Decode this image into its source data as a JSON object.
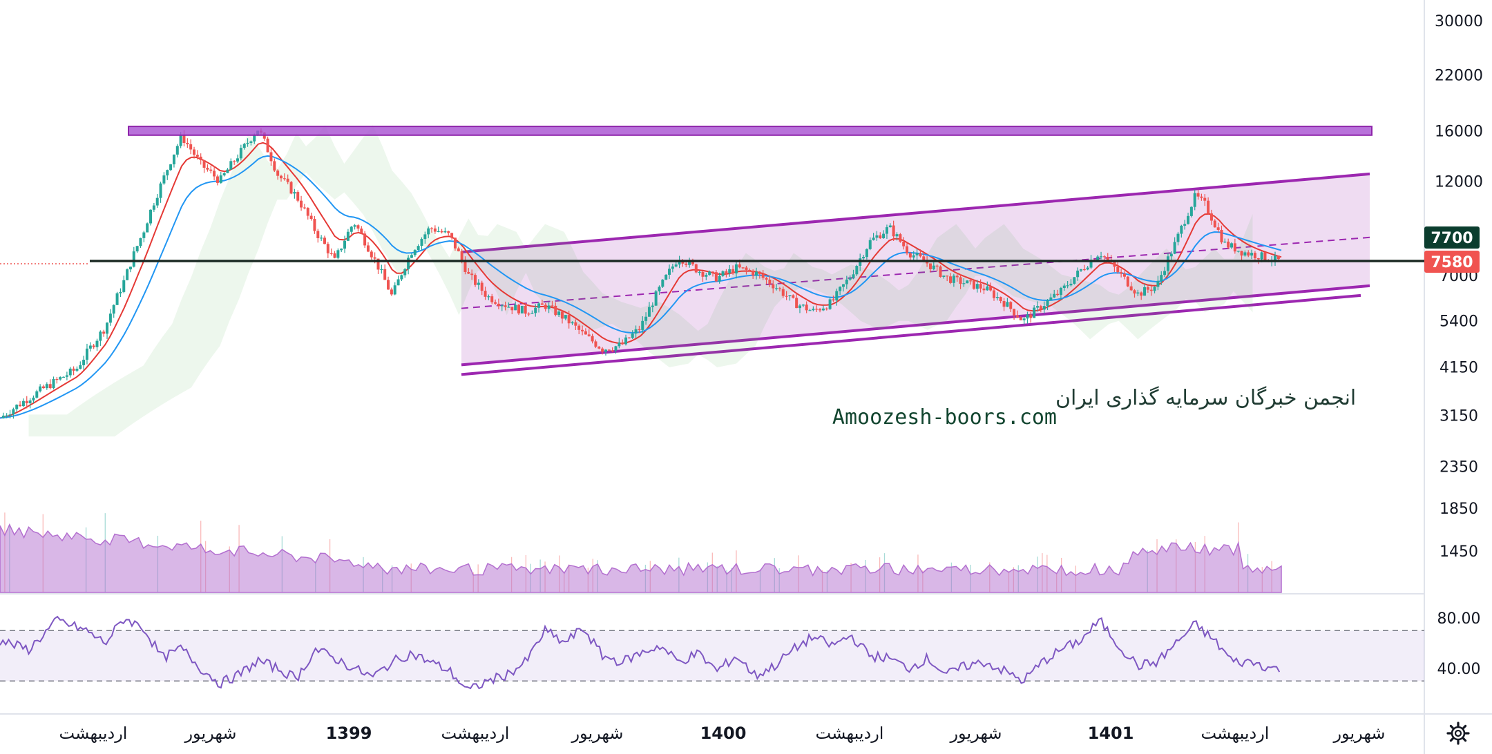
{
  "chart_data": {
    "type": "candlestick",
    "price_axis": {
      "scale": "log",
      "ticks": [
        "30000",
        "22000",
        "16000",
        "12000",
        "7000",
        "5400",
        "4150",
        "3150",
        "2350",
        "1850",
        "1450"
      ]
    },
    "rsi_axis": {
      "ticks": [
        "80.00",
        "40.00"
      ],
      "upper_level": 70,
      "lower_level": 30
    },
    "time_axis": {
      "labels": [
        {
          "text": "اردیبهشت",
          "bold": false
        },
        {
          "text": "شهریور",
          "bold": false
        },
        {
          "text": "1399",
          "bold": true
        },
        {
          "text": "اردیبهشت",
          "bold": false
        },
        {
          "text": "شهریور",
          "bold": false
        },
        {
          "text": "1400",
          "bold": true
        },
        {
          "text": "اردیبهشت",
          "bold": false
        },
        {
          "text": "شهریور",
          "bold": false
        },
        {
          "text": "1401",
          "bold": true
        },
        {
          "text": "اردیبهشت",
          "bold": false
        },
        {
          "text": "شهریور",
          "bold": false
        }
      ]
    },
    "price_tags": [
      {
        "value": "7700",
        "color": "#0b3d2e"
      },
      {
        "value": "7580",
        "color": "#f05350"
      }
    ],
    "resistance_zone": {
      "low": 15600,
      "high": 16400,
      "color": "#a64fd1"
    },
    "support_level": 7600,
    "channel": {
      "upper_start": 8000,
      "upper_end": 12500,
      "lower_start": 4200,
      "lower_end": 6600,
      "mid_start": 5800,
      "mid_end": 8700
    },
    "price_path": [
      [
        0,
        3100
      ],
      [
        4,
        3600
      ],
      [
        8,
        4100
      ],
      [
        11,
        5200
      ],
      [
        13,
        6800
      ],
      [
        15,
        9000
      ],
      [
        17,
        12000
      ],
      [
        19,
        15500
      ],
      [
        21,
        13200
      ],
      [
        23,
        12000
      ],
      [
        25,
        14000
      ],
      [
        27,
        16200
      ],
      [
        29,
        12500
      ],
      [
        31,
        11000
      ],
      [
        33,
        9000
      ],
      [
        35,
        7600
      ],
      [
        37,
        9500
      ],
      [
        39,
        7800
      ],
      [
        41,
        6200
      ],
      [
        43,
        8000
      ],
      [
        45,
        9200
      ],
      [
        47,
        8800
      ],
      [
        49,
        7000
      ],
      [
        51,
        6200
      ],
      [
        53,
        5900
      ],
      [
        55,
        5700
      ],
      [
        57,
        5900
      ],
      [
        59,
        5500
      ],
      [
        61,
        5000
      ],
      [
        63,
        4600
      ],
      [
        65,
        4700
      ],
      [
        67,
        5200
      ],
      [
        69,
        6500
      ],
      [
        71,
        7800
      ],
      [
        73,
        7200
      ],
      [
        75,
        6900
      ],
      [
        77,
        7300
      ],
      [
        79,
        7100
      ],
      [
        81,
        6600
      ],
      [
        83,
        6000
      ],
      [
        85,
        5700
      ],
      [
        87,
        6000
      ],
      [
        89,
        7000
      ],
      [
        91,
        8500
      ],
      [
        93,
        9200
      ],
      [
        95,
        8000
      ],
      [
        97,
        7500
      ],
      [
        99,
        6900
      ],
      [
        101,
        6700
      ],
      [
        103,
        6500
      ],
      [
        105,
        6000
      ],
      [
        107,
        5400
      ],
      [
        109,
        5900
      ],
      [
        111,
        6400
      ],
      [
        113,
        7200
      ],
      [
        115,
        8000
      ],
      [
        117,
        7100
      ],
      [
        119,
        6300
      ],
      [
        121,
        6600
      ],
      [
        123,
        8500
      ],
      [
        125,
        11000
      ],
      [
        126,
        10500
      ],
      [
        128,
        8400
      ],
      [
        130,
        8000
      ],
      [
        132,
        7800
      ],
      [
        134,
        7580
      ]
    ],
    "rsi_path": [
      [
        0,
        62
      ],
      [
        3,
        55
      ],
      [
        6,
        78
      ],
      [
        9,
        70
      ],
      [
        11,
        60
      ],
      [
        13,
        80
      ],
      [
        15,
        72
      ],
      [
        17,
        48
      ],
      [
        19,
        56
      ],
      [
        21,
        40
      ],
      [
        23,
        28
      ],
      [
        25,
        35
      ],
      [
        27,
        46
      ],
      [
        29,
        40
      ],
      [
        31,
        32
      ],
      [
        33,
        55
      ],
      [
        35,
        48
      ],
      [
        37,
        40
      ],
      [
        39,
        33
      ],
      [
        41,
        45
      ],
      [
        43,
        52
      ],
      [
        45,
        45
      ],
      [
        47,
        38
      ],
      [
        49,
        22
      ],
      [
        51,
        30
      ],
      [
        53,
        35
      ],
      [
        55,
        45
      ],
      [
        57,
        70
      ],
      [
        59,
        60
      ],
      [
        61,
        72
      ],
      [
        63,
        50
      ],
      [
        65,
        45
      ],
      [
        67,
        52
      ],
      [
        69,
        58
      ],
      [
        71,
        45
      ],
      [
        73,
        52
      ],
      [
        75,
        38
      ],
      [
        77,
        50
      ],
      [
        79,
        34
      ],
      [
        81,
        42
      ],
      [
        83,
        55
      ],
      [
        85,
        65
      ],
      [
        87,
        58
      ],
      [
        89,
        66
      ],
      [
        91,
        50
      ],
      [
        93,
        48
      ],
      [
        95,
        40
      ],
      [
        97,
        48
      ],
      [
        99,
        35
      ],
      [
        101,
        42
      ],
      [
        103,
        45
      ],
      [
        105,
        38
      ],
      [
        107,
        30
      ],
      [
        109,
        45
      ],
      [
        111,
        55
      ],
      [
        113,
        62
      ],
      [
        115,
        78
      ],
      [
        117,
        58
      ],
      [
        119,
        42
      ],
      [
        121,
        45
      ],
      [
        123,
        60
      ],
      [
        125,
        75
      ],
      [
        127,
        62
      ],
      [
        129,
        45
      ],
      [
        131,
        45
      ],
      [
        133,
        40
      ],
      [
        134,
        40
      ]
    ],
    "watermark": {
      "line1": "انجمن خبرگان سرمایه گذاری ایران",
      "line2": "Amoozesh-boors.com"
    },
    "colors": {
      "up": "#26a69a",
      "down": "#ef5350",
      "ema_fast": "#e53935",
      "ema_slow": "#2196f3",
      "channel": "#9c27b0",
      "volume": "#b36fcf",
      "rsi": "#7e57c2",
      "support": "#1b2a24"
    },
    "settings_icon": "gear-icon"
  }
}
